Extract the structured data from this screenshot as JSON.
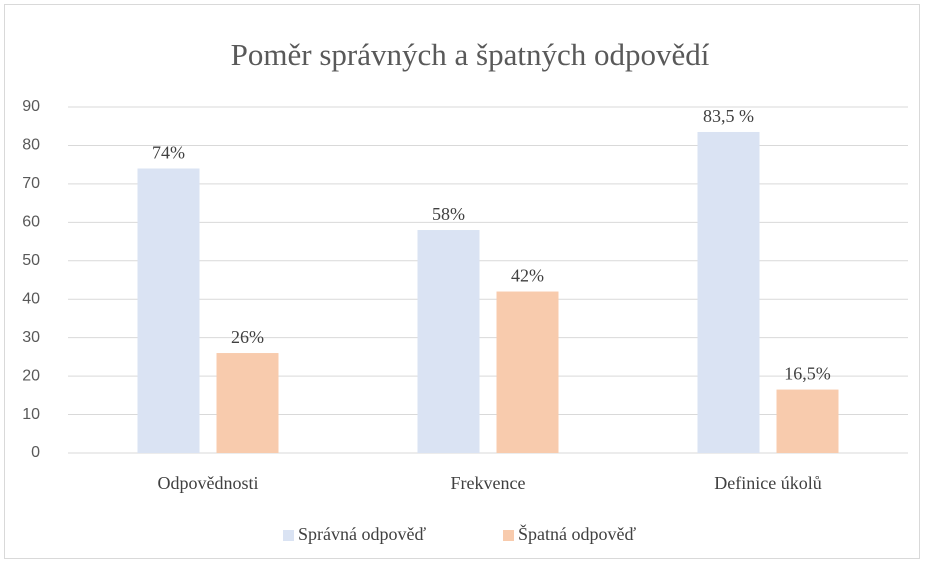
{
  "chart_data": {
    "type": "bar",
    "title": "Poměr správných a špatných odpovědí",
    "categories": [
      "Odpovědnosti",
      "Frekvence",
      "Definice úkolů"
    ],
    "series": [
      {
        "name": "Správná odpověď",
        "color": "#dae3f3",
        "values": [
          74,
          58,
          83.5
        ],
        "value_labels": [
          "74%",
          "58%",
          "83,5 %"
        ]
      },
      {
        "name": "Špatná odpověď",
        "color": "#f8cbad",
        "values": [
          26,
          42,
          16.5
        ],
        "value_labels": [
          "26%",
          "42%",
          "16,5%"
        ]
      }
    ],
    "ylim": [
      0,
      90
    ],
    "yticks": [
      0,
      10,
      20,
      30,
      40,
      50,
      60,
      70,
      80,
      90
    ],
    "grid": true,
    "legend": "bottom"
  }
}
